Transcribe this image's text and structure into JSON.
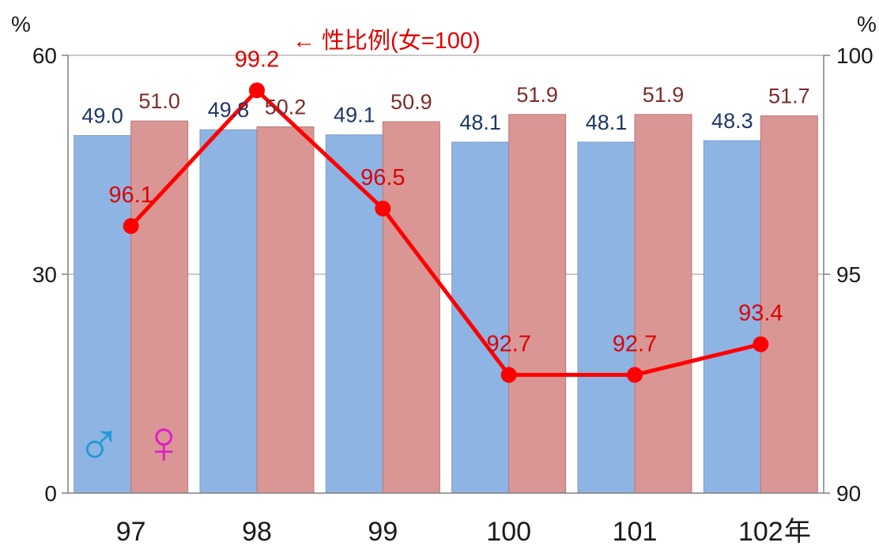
{
  "chart_data": {
    "type": "bar+line",
    "categories": [
      "97",
      "98",
      "99",
      "100",
      "101",
      "102"
    ],
    "x_unit_label": "年",
    "y_left": {
      "unit_label": "%",
      "ylim": [
        0,
        60
      ],
      "ticks": [
        "0",
        "30",
        "60"
      ]
    },
    "y_right": {
      "unit_label": "%",
      "ylim": [
        90,
        100
      ],
      "ticks": [
        "90",
        "95",
        "100"
      ]
    },
    "series": [
      {
        "values": [
          49.0,
          49.8,
          49.1,
          48.1,
          48.1,
          48.3
        ],
        "axis": "left",
        "kind": "bar",
        "color": "#8eb4e3"
      },
      {
        "values": [
          51.0,
          50.2,
          50.9,
          51.9,
          51.9,
          51.7
        ],
        "axis": "left",
        "kind": "bar",
        "color": "#d99694"
      },
      {
        "name": "性比例(女=100)",
        "values": [
          96.1,
          99.2,
          96.5,
          92.7,
          92.7,
          93.4
        ],
        "axis": "right",
        "kind": "line",
        "color": "#ff0000"
      }
    ],
    "male_labels": [
      "49.0",
      "49.8",
      "49.1",
      "48.1",
      "48.1",
      "48.3"
    ],
    "female_labels": [
      "51.0",
      "50.2",
      "50.9",
      "51.9",
      "51.9",
      "51.7"
    ],
    "ratio_labels": [
      "96.1",
      "99.2",
      "96.5",
      "92.7",
      "92.7",
      "93.4"
    ],
    "annotation": "← 性比例(女=100)",
    "legend_symbols": {
      "male": "♂",
      "female": "♀",
      "male_color": "#1f9bd7",
      "female_color": "#e020c8"
    },
    "grid": true
  }
}
